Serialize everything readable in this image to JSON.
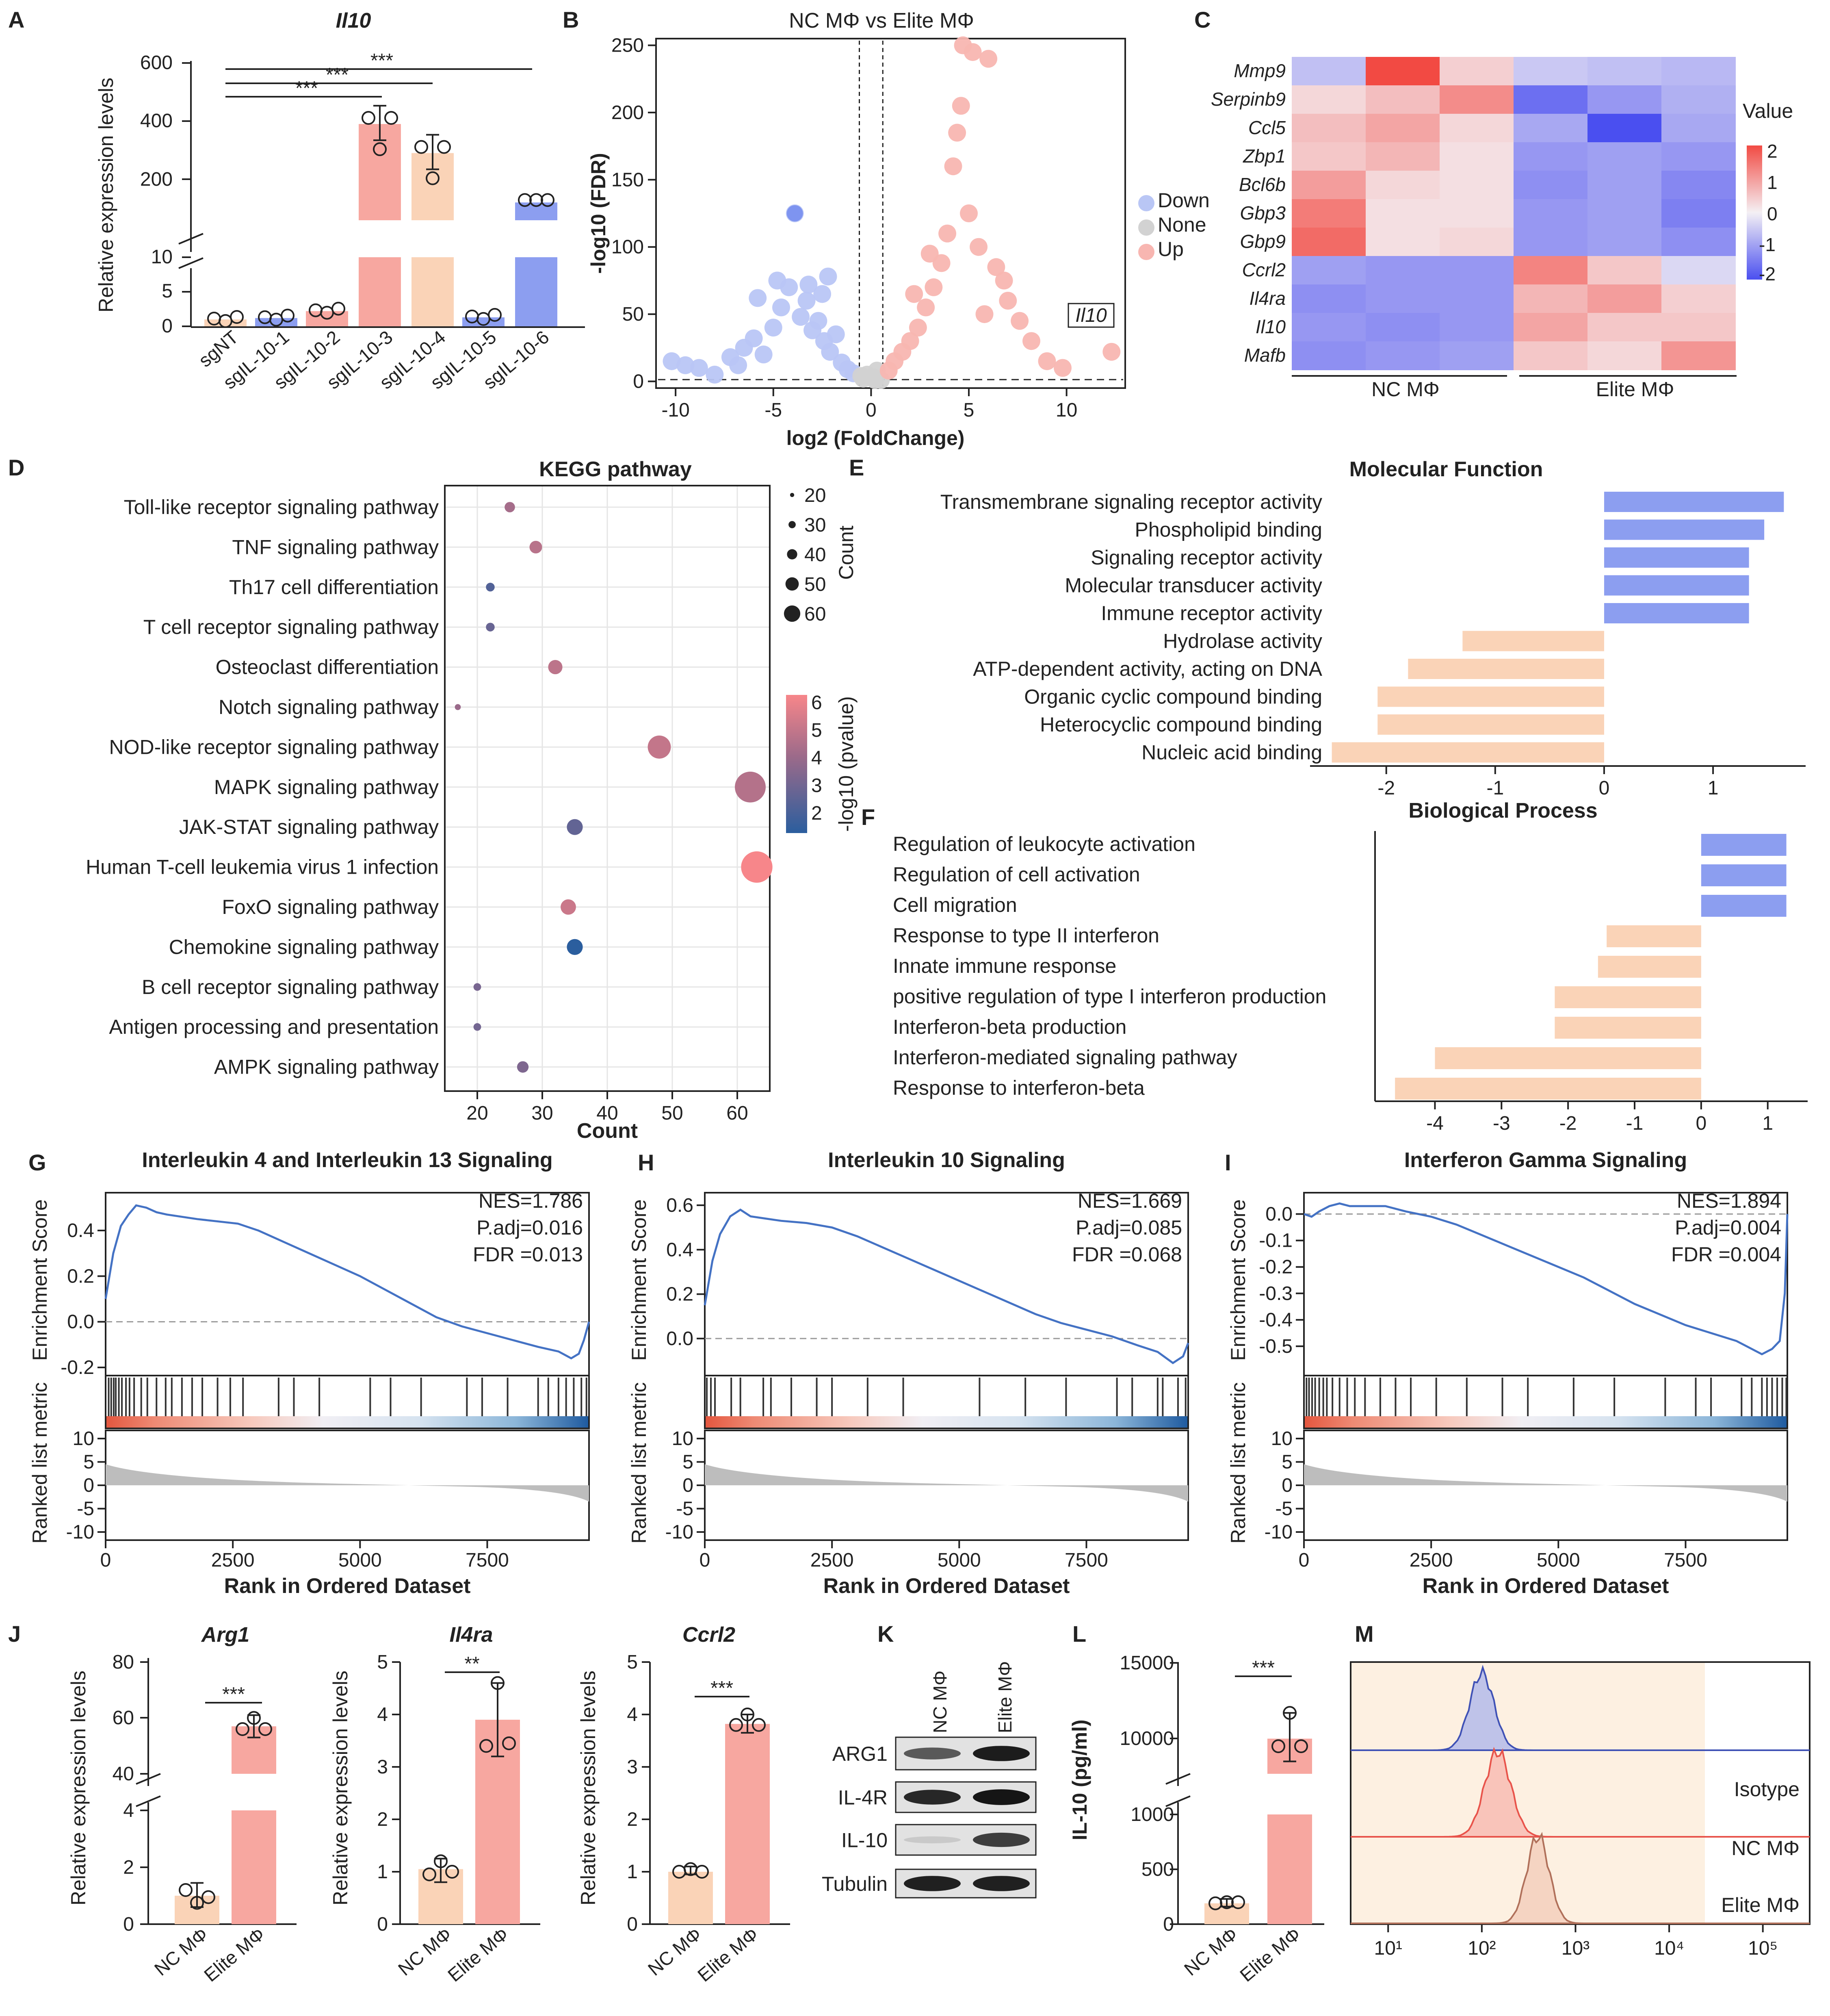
{
  "colors": {
    "blue": "#8C9EF0",
    "blue_dot": "#9EB3F2",
    "pink": "#F7A7A0",
    "peach": "#FAD3B7",
    "red": "#E8534A",
    "gsea_line": "#4472C4",
    "grey": "#BBBBBB",
    "up": "#F8B6B1",
    "down": "#B9C6F5"
  },
  "panels": {
    "A": "A",
    "B": "B",
    "C": "C",
    "D": "D",
    "E": "E",
    "F": "F",
    "G": "G",
    "H": "H",
    "I": "I",
    "J": "J",
    "K": "K",
    "L": "L",
    "M": "M"
  },
  "sig": {
    "s3": "***",
    "s2": "**"
  },
  "A": {
    "title": "Il10",
    "ylabel": "Relative expression levels",
    "upper_ticks": [
      "600",
      "400",
      "200"
    ],
    "lower_ticks": [
      "10",
      "5",
      "0"
    ]
  },
  "B": {
    "title": "NC MΦ  vs  Elite MΦ",
    "xlabel": "log2 (FoldChange)",
    "ylabel": "-log10 (FDR)",
    "legend": [
      "Down",
      "None",
      "Up"
    ],
    "gene_label": "Il10",
    "xticks": [
      "-10",
      "-5",
      "0",
      "5",
      "10"
    ],
    "yticks": [
      "0",
      "50",
      "100",
      "150",
      "200",
      "250"
    ]
  },
  "C": {
    "legend_title": "Value",
    "legend_ticks": [
      "2",
      "1",
      "0",
      "-1",
      "-2"
    ],
    "group_labels": [
      "NC MΦ",
      "Elite MΦ"
    ]
  },
  "D": {
    "title": "KEGG pathway",
    "xlabel": "Count",
    "xticks": [
      "20",
      "30",
      "40",
      "50",
      "60"
    ],
    "size_legend_title": "Count",
    "size_legend": [
      "20",
      "30",
      "40",
      "50",
      "60"
    ],
    "color_legend_title": "-log10 (pvalue)",
    "color_legend": [
      "6",
      "5",
      "4",
      "3",
      "2"
    ]
  },
  "E": {
    "title": "Molecular Function",
    "xticks": [
      "-2",
      "-1",
      "0",
      "1"
    ]
  },
  "F": {
    "title": "Biological Process",
    "xticks": [
      "-4",
      "-3",
      "-2",
      "-1",
      "0",
      "1"
    ]
  },
  "GSEA": {
    "ylabel_top": "Enrichment Score",
    "ylabel_bottom": "Ranked list metric",
    "xlabel": "Rank in Ordered Dataset",
    "xticks": [
      "0",
      "2500",
      "5000",
      "7500"
    ]
  },
  "G": {
    "title": "Interleukin 4 and Interleukin 13 Signaling",
    "stats": [
      "NES=1.786",
      "P.adj=0.016",
      "FDR =0.013"
    ],
    "yticks": [
      "0.4",
      "0.2",
      "0.0",
      "-0.2"
    ],
    "mticks": [
      "10",
      "5",
      "0",
      "-5",
      "-10"
    ]
  },
  "H": {
    "title": "Interleukin 10 Signaling",
    "stats": [
      "NES=1.669",
      "P.adj=0.085",
      "FDR =0.068"
    ],
    "yticks": [
      "0.6",
      "0.4",
      "0.2",
      "0.0"
    ],
    "mticks": [
      "10",
      "5",
      "0",
      "-5",
      "-10"
    ]
  },
  "I": {
    "title": "Interferon Gamma Signaling",
    "stats": [
      "NES=1.894",
      "P.adj=0.004",
      "FDR =0.004"
    ],
    "yticks": [
      "0.0",
      "-0.1",
      "-0.2",
      "-0.3",
      "-0.4",
      "-0.5"
    ],
    "mticks": [
      "10",
      "5",
      "0",
      "-5",
      "-10"
    ]
  },
  "J": {
    "ylabel": "Relative expression levels",
    "groups": [
      "NC MΦ",
      "Elite MΦ"
    ],
    "arg1": {
      "title": "Arg1",
      "upper_ticks": [
        "80",
        "60",
        "40"
      ],
      "lower_ticks": [
        "4",
        "2",
        "0"
      ]
    },
    "il4ra": {
      "title": "Il4ra",
      "ticks": [
        "5",
        "4",
        "3",
        "2",
        "1",
        "0"
      ]
    },
    "ccrl2": {
      "title": "Ccrl2",
      "ticks": [
        "5",
        "4",
        "3",
        "2",
        "1",
        "0"
      ]
    }
  },
  "K": {
    "lanes": [
      "NC MΦ",
      "Elite MΦ"
    ],
    "rows": [
      "ARG1",
      "IL-4R",
      "IL-10",
      "Tubulin"
    ]
  },
  "L": {
    "ylabel": "IL-10 (pg/ml)",
    "groups": [
      "NC MΦ",
      "Elite MΦ"
    ],
    "upper_ticks": [
      "15000",
      "10000"
    ],
    "lower_ticks": [
      "1000",
      "500",
      "0"
    ]
  },
  "M": {
    "labels": [
      "Isotype",
      "NC MΦ",
      "Elite MΦ"
    ],
    "xticks": [
      "10¹",
      "10²",
      "10³",
      "10⁴",
      "10⁵"
    ]
  },
  "chart_data": [
    {
      "panel": "A",
      "type": "bar",
      "title": "Il10",
      "ylabel": "Relative expression levels",
      "categories": [
        "sgNT",
        "sgIL-10-1",
        "sgIL-10-2",
        "sgIL-10-3",
        "sgIL-10-4",
        "sgIL-10-5",
        "sgIL-10-6"
      ],
      "values": [
        1,
        1.2,
        2.2,
        390,
        290,
        1.3,
        120
      ],
      "axis_break": true
    },
    {
      "panel": "B",
      "type": "scatter",
      "title": "NC MΦ  vs  Elite MΦ",
      "xlabel": "log2 (FoldChange)",
      "ylabel": "-log10 (FDR)",
      "xlim": [
        -11,
        13
      ],
      "ylim": [
        -5,
        255
      ],
      "series": [
        {
          "name": "Down",
          "points": [
            [
              -10.2,
              15
            ],
            [
              -9.5,
              12
            ],
            [
              -8.8,
              10
            ],
            [
              -8,
              5
            ],
            [
              -7.2,
              18
            ],
            [
              -6.5,
              25
            ],
            [
              -6,
              32
            ],
            [
              -5.5,
              20
            ],
            [
              -5,
              40
            ],
            [
              -4.6,
              55
            ],
            [
              -4.2,
              70
            ],
            [
              -3.9,
              125
            ],
            [
              -3.6,
              48
            ],
            [
              -3.3,
              60
            ],
            [
              -3,
              38
            ],
            [
              -2.7,
              45
            ],
            [
              -2.4,
              30
            ],
            [
              -2.1,
              22
            ],
            [
              -1.8,
              35
            ],
            [
              -1.5,
              14
            ],
            [
              -1.2,
              9
            ],
            [
              -0.9,
              6
            ],
            [
              -4.8,
              75
            ],
            [
              -3.2,
              72
            ],
            [
              -2.2,
              78
            ],
            [
              -5.8,
              62
            ],
            [
              -2.5,
              65
            ],
            [
              -6.8,
              12
            ]
          ]
        },
        {
          "name": "None",
          "points": [
            [
              -0.4,
              2
            ],
            [
              0.1,
              3
            ],
            [
              0.5,
              1
            ],
            [
              -0.2,
              5
            ],
            [
              0.3,
              8
            ],
            [
              -0.5,
              4
            ],
            [
              0.2,
              1
            ]
          ]
        },
        {
          "name": "Up",
          "points": [
            [
              0.9,
              8
            ],
            [
              1.2,
              15
            ],
            [
              1.6,
              22
            ],
            [
              2,
              30
            ],
            [
              2.4,
              40
            ],
            [
              2.8,
              55
            ],
            [
              3.2,
              70
            ],
            [
              3.6,
              88
            ],
            [
              3.9,
              110
            ],
            [
              4.2,
              160
            ],
            [
              4.4,
              185
            ],
            [
              4.6,
              205
            ],
            [
              4.7,
              250
            ],
            [
              5.2,
              245
            ],
            [
              5,
              125
            ],
            [
              5.5,
              100
            ],
            [
              6,
              240
            ],
            [
              6.4,
              85
            ],
            [
              7,
              60
            ],
            [
              7.6,
              45
            ],
            [
              8.2,
              30
            ],
            [
              9,
              15
            ],
            [
              9.8,
              10
            ],
            [
              12.3,
              22
            ],
            [
              2.2,
              65
            ],
            [
              3,
              95
            ],
            [
              6.8,
              75
            ],
            [
              5.8,
              50
            ]
          ]
        }
      ],
      "annotation": "Il10"
    },
    {
      "panel": "C",
      "type": "heatmap",
      "rows": [
        "Mmp9",
        "Serpinb9",
        "Ccl5",
        "Zbp1",
        "Bcl6b",
        "Gbp3",
        "Gbp9",
        "Ccrl2",
        "Il4ra",
        "Il10",
        "Mafb"
      ],
      "groups": [
        "NC MΦ",
        "NC MΦ",
        "NC MΦ",
        "Elite MΦ",
        "Elite MΦ",
        "Elite MΦ"
      ],
      "values": [
        [
          -0.6,
          2.0,
          0.4,
          -0.5,
          -0.6,
          -0.7
        ],
        [
          0.3,
          0.6,
          1.2,
          -1.6,
          -1.1,
          -0.8
        ],
        [
          0.6,
          0.9,
          0.3,
          -0.9,
          -2.1,
          -0.9
        ],
        [
          0.5,
          0.7,
          0.2,
          -1.1,
          -1.0,
          -1.1
        ],
        [
          1.0,
          0.3,
          0.2,
          -1.2,
          -1.0,
          -1.3
        ],
        [
          1.4,
          0.2,
          0.2,
          -1.1,
          -1.0,
          -1.4
        ],
        [
          1.6,
          0.2,
          0.3,
          -1.1,
          -1.0,
          -1.2
        ],
        [
          -1.0,
          -1.1,
          -1.1,
          1.3,
          0.5,
          -0.3
        ],
        [
          -1.2,
          -1.1,
          -1.1,
          0.7,
          1.0,
          0.4
        ],
        [
          -1.1,
          -1.2,
          -1.1,
          0.9,
          0.5,
          0.5
        ],
        [
          -1.2,
          -1.1,
          -1.0,
          0.5,
          0.3,
          1.1
        ]
      ],
      "scale": [
        -2,
        2
      ]
    },
    {
      "panel": "D",
      "type": "scatter",
      "title": "KEGG pathway",
      "xlabel": "Count",
      "xlim": [
        15,
        65
      ],
      "categories": [
        "Toll-like receptor signaling pathway",
        "TNF signaling pathway",
        "Th17 cell differentiation",
        "T cell receptor signaling pathway",
        "Osteoclast differentiation",
        "Notch signaling pathway",
        "NOD-like receptor signaling pathway",
        "MAPK signaling pathway",
        "JAK-STAT signaling pathway",
        "Human T-cell leukemia virus 1 infection",
        "FoxO signaling pathway",
        "Chemokine signaling pathway",
        "B cell receptor signaling pathway",
        "Antigen processing and presentation",
        "AMPK signaling pathway"
      ],
      "x": [
        25,
        29,
        22,
        22,
        32,
        17,
        48,
        62,
        35,
        63,
        34,
        35,
        20,
        20,
        27
      ],
      "pvalue_log10": [
        3.8,
        4.3,
        2.2,
        2.6,
        4.4,
        3.5,
        4.6,
        4.2,
        2.5,
        6.0,
        4.8,
        1.5,
        2.9,
        2.8,
        3.0
      ]
    },
    {
      "panel": "E",
      "type": "bar",
      "orientation": "horizontal",
      "title": "Molecular Function",
      "categories": [
        "Transmembrane signaling receptor activity",
        "Phospholipid binding",
        "Signaling receptor activity",
        "Molecular transducer activity",
        "Immune receptor activity",
        "Hydrolase activity",
        "ATP-dependent activity, acting on DNA",
        "Organic cyclic compound binding",
        "Heterocyclic compound binding",
        "Nucleic acid binding"
      ],
      "values": [
        1.65,
        1.47,
        1.33,
        1.33,
        1.33,
        -1.3,
        -1.8,
        -2.08,
        -2.08,
        -2.5
      ],
      "xlim": [
        -2.7,
        1.85
      ]
    },
    {
      "panel": "F",
      "type": "bar",
      "orientation": "horizontal",
      "title": "Biological Process",
      "categories": [
        "Regulation of leukocyte activation",
        "Regulation of cell activation",
        "Cell migration",
        "Response to type II interferon",
        "Innate immune response",
        "positive regulation of type I interferon production",
        "Interferon-beta production",
        "Interferon-mediated signaling pathway",
        "Response to interferon-beta"
      ],
      "values": [
        1.28,
        1.28,
        1.28,
        -1.42,
        -1.55,
        -2.2,
        -2.2,
        -4.0,
        -4.6
      ],
      "xlim": [
        -4.9,
        1.6
      ]
    },
    {
      "panel": "G",
      "type": "line",
      "title": "Interleukin 4 and Interleukin 13 Signaling",
      "xlabel": "Rank in Ordered Dataset",
      "ylabel": "Enrichment Score",
      "xlim": [
        0,
        9500
      ],
      "ylim": [
        -0.2,
        0.53
      ],
      "x": [
        0,
        150,
        300,
        450,
        600,
        800,
        1000,
        1200,
        1500,
        1800,
        2200,
        2600,
        3000,
        3500,
        4000,
        4500,
        5000,
        5500,
        6000,
        6500,
        7000,
        7500,
        8000,
        8500,
        8900,
        9150,
        9300,
        9400,
        9500
      ],
      "y": [
        0.1,
        0.3,
        0.42,
        0.47,
        0.51,
        0.5,
        0.48,
        0.47,
        0.46,
        0.45,
        0.44,
        0.43,
        0.4,
        0.35,
        0.3,
        0.25,
        0.2,
        0.14,
        0.08,
        0.02,
        -0.02,
        -0.05,
        -0.08,
        -0.11,
        -0.13,
        -0.16,
        -0.14,
        -0.08,
        0.0
      ]
    },
    {
      "panel": "H",
      "type": "line",
      "title": "Interleukin 10 Signaling",
      "xlabel": "Rank in Ordered Dataset",
      "ylabel": "Enrichment Score",
      "xlim": [
        0,
        9500
      ],
      "ylim": [
        -0.13,
        0.62
      ],
      "x": [
        0,
        150,
        300,
        500,
        700,
        900,
        1200,
        1500,
        2000,
        2500,
        3000,
        3500,
        4000,
        4500,
        5000,
        5500,
        6000,
        6500,
        7000,
        7500,
        8000,
        8500,
        8900,
        9200,
        9400,
        9500
      ],
      "y": [
        0.15,
        0.35,
        0.47,
        0.55,
        0.58,
        0.55,
        0.54,
        0.53,
        0.52,
        0.5,
        0.46,
        0.41,
        0.36,
        0.31,
        0.26,
        0.21,
        0.16,
        0.11,
        0.07,
        0.04,
        0.01,
        -0.03,
        -0.06,
        -0.11,
        -0.08,
        -0.02
      ]
    },
    {
      "panel": "I",
      "type": "line",
      "title": "Interferon Gamma Signaling",
      "xlabel": "Rank in Ordered Dataset",
      "ylabel": "Enrichment Score",
      "xlim": [
        0,
        9500
      ],
      "ylim": [
        -0.58,
        0.05
      ],
      "x": [
        0,
        150,
        300,
        500,
        700,
        900,
        1200,
        1600,
        2000,
        2500,
        3000,
        3500,
        4000,
        4500,
        5000,
        5500,
        6000,
        6500,
        7000,
        7500,
        8000,
        8500,
        8800,
        9000,
        9200,
        9350,
        9450,
        9500
      ],
      "y": [
        0.0,
        -0.01,
        0.01,
        0.03,
        0.04,
        0.03,
        0.03,
        0.03,
        0.01,
        -0.01,
        -0.04,
        -0.08,
        -0.12,
        -0.16,
        -0.2,
        -0.24,
        -0.29,
        -0.34,
        -0.38,
        -0.42,
        -0.45,
        -0.48,
        -0.51,
        -0.53,
        -0.51,
        -0.48,
        -0.3,
        0.0
      ]
    },
    {
      "panel": "J",
      "type": "bar",
      "title": "Arg1",
      "ylabel": "Relative expression levels",
      "categories": [
        "NC MΦ",
        "Elite MΦ"
      ],
      "values": [
        1.0,
        57
      ],
      "axis_break": true
    },
    {
      "panel": "J",
      "type": "bar",
      "title": "Il4ra",
      "ylabel": "Relative expression levels",
      "categories": [
        "NC MΦ",
        "Elite MΦ"
      ],
      "values": [
        1.05,
        3.9
      ],
      "ylim": [
        0,
        5
      ]
    },
    {
      "panel": "J",
      "type": "bar",
      "title": "Ccrl2",
      "ylabel": "Relative expression levels",
      "categories": [
        "NC MΦ",
        "Elite MΦ"
      ],
      "values": [
        1.0,
        3.82
      ],
      "ylim": [
        0,
        5
      ]
    },
    {
      "panel": "L",
      "type": "bar",
      "ylabel": "IL-10 (pg/ml)",
      "categories": [
        "NC MΦ",
        "Elite MΦ"
      ],
      "values": [
        190,
        10000
      ],
      "axis_break": true
    },
    {
      "panel": "M",
      "type": "area",
      "xscale": "log",
      "series": [
        {
          "name": "Isotype",
          "peak": 100
        },
        {
          "name": "NC MΦ",
          "peak": 150
        },
        {
          "name": "Elite MΦ",
          "peak": 400
        }
      ]
    }
  ]
}
